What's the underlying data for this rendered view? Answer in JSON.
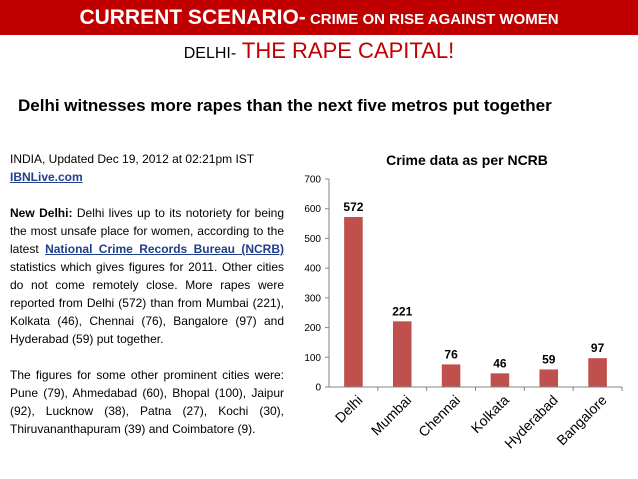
{
  "header": {
    "title_main": "CURRENT SCENARIO-",
    "title_sub": " CRIME ON RISE AGAINST WOMEN",
    "subtitle_prefix": "DELHI-",
    "subtitle_main": " THE RAPE CAPITAL!",
    "headline": "Delhi witnesses more rapes than the next five metros put together"
  },
  "article": {
    "dateline": "INDIA, Updated Dec 19, 2012 at 02:21pm IST",
    "source": "IBNLive.com",
    "p1_lead": "New Delhi:",
    "p1_a": " Delhi lives up to its notoriety for being the most unsafe place for women, according to the latest ",
    "p1_link": "National Crime Records Bureau (NCRB)",
    "p1_b": " statistics which gives figures for 2011. Other cities do not come remotely close. More rapes were reported from Delhi (572) than from Mumbai (221), Kolkata (46), Chennai (76), Bangalore (97) and Hyderabad (59) put together.",
    "p2": "The figures for some other prominent cities were: Pune (79), Ahmedabad (60), Bhopal (100), Jaipur (92), Lucknow (38), Patna (27), Kochi (30), Thiruvananthapuram (39) and Coimbatore (9)."
  },
  "chart_data": {
    "type": "bar",
    "title": "Crime data as per NCRB",
    "categories": [
      "Delhi",
      "Mumbai",
      "Chennai",
      "Kolkata",
      "Hyderabad",
      "Bangalore"
    ],
    "values": [
      572,
      221,
      76,
      46,
      59,
      97
    ],
    "ylim": [
      0,
      700
    ],
    "yticks": [
      0,
      100,
      200,
      300,
      400,
      500,
      600,
      700
    ],
    "xlabel": "",
    "ylabel": "",
    "grid": false,
    "legend": "none",
    "bar_color": "#c0504d"
  }
}
